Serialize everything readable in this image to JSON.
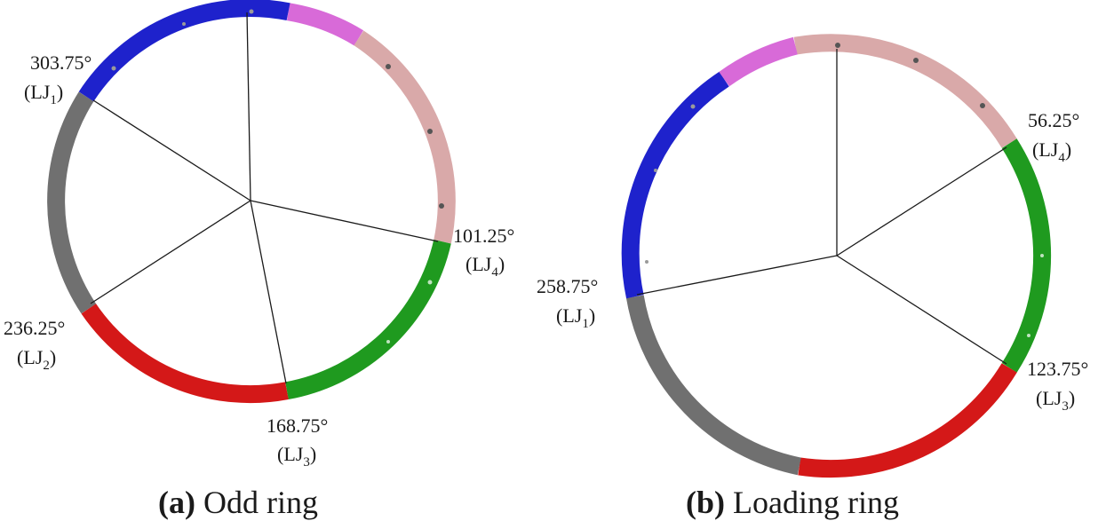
{
  "colors": {
    "blue": "#1e22cc",
    "violet": "#d86ad8",
    "pink": "#d9a9a9",
    "green": "#1f9a1f",
    "red": "#d41818",
    "gray": "#707070",
    "line": "#1a1a1a"
  },
  "panels": [
    {
      "caption_letter": "(a)",
      "caption_text": " Odd ring",
      "joints": [
        {
          "angle": "303.75°",
          "name": "LJ",
          "sub": "1"
        },
        {
          "angle": "101.25°",
          "name": "LJ",
          "sub": "4"
        },
        {
          "angle": "236.25°",
          "name": "LJ",
          "sub": "2"
        },
        {
          "angle": "168.75°",
          "name": "LJ",
          "sub": "3"
        }
      ]
    },
    {
      "caption_letter": "(b)",
      "caption_text": " Loading ring",
      "joints": [
        {
          "angle": "56.25°",
          "name": "LJ",
          "sub": "4"
        },
        {
          "angle": "258.75°",
          "name": "LJ",
          "sub": "1"
        },
        {
          "angle": "123.75°",
          "name": "LJ",
          "sub": "3"
        }
      ]
    }
  ]
}
